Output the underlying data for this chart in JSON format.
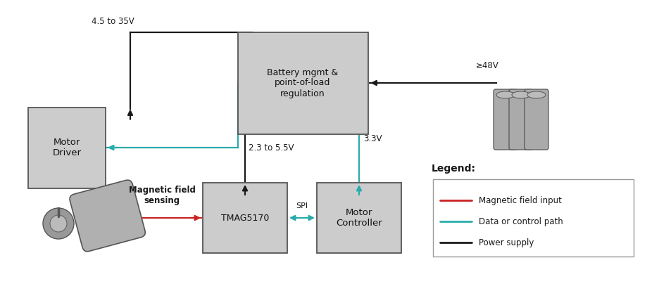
{
  "background_color": "#ffffff",
  "box_fill": "#cccccc",
  "box_edge": "#555555",
  "red_color": "#cc2222",
  "teal_color": "#2aabab",
  "black_color": "#1a1a1a",
  "annotations": {
    "v_motor": "4.5 to 35V",
    "v_battery": "≥48V",
    "v_supply": "2.3 to 5.5V",
    "v_3v3": "3.3V",
    "spi_label": "SPI",
    "mag_label": "Magnetic field\nsensing"
  },
  "legend": {
    "title": "Legend:",
    "entries": [
      {
        "color": "#cc2222",
        "label": "Magnetic field input"
      },
      {
        "color": "#2aabab",
        "label": "Data or control path"
      },
      {
        "color": "#1a1a1a",
        "label": "Power supply"
      }
    ]
  }
}
